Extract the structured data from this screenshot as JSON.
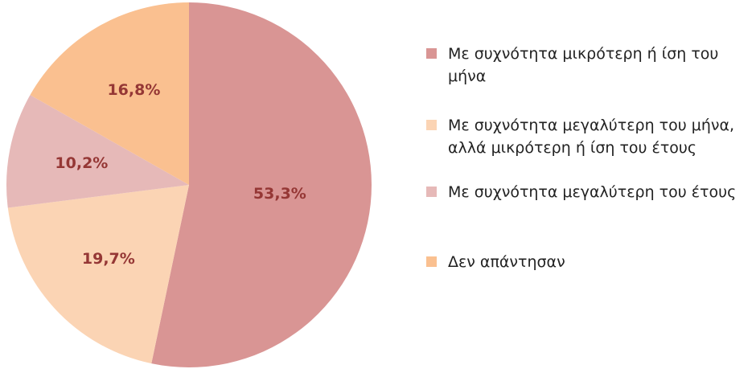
{
  "chart_data": {
    "type": "pie",
    "categories": [
      "Με συχνότητα μικρότερη ή ίση του μήνα",
      "Με συχνότητα μεγαλύτερη του μήνα, αλλά μικρότερη ή ίση του έτους",
      "Με συχνότητα μεγαλύτερη του έτους",
      "Δεν απάντησαν"
    ],
    "values": [
      53.3,
      19.7,
      10.2,
      16.8
    ],
    "value_labels": [
      "53,3%",
      "19,7%",
      "10,2%",
      "16,8%"
    ],
    "colors": [
      "#d99594",
      "#fbd4b4",
      "#e6b9b8",
      "#fac090"
    ],
    "legend": "right"
  }
}
